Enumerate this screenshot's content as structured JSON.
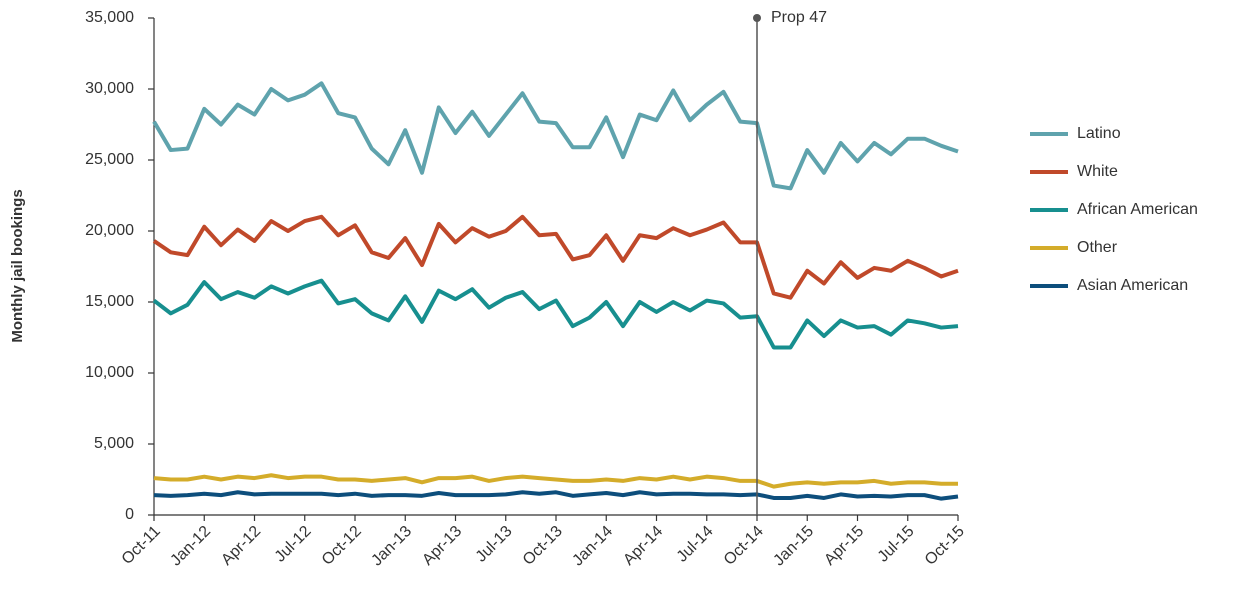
{
  "chart_data": {
    "type": "line",
    "y_label": "Monthly jail bookings",
    "categories": [
      "Oct-11",
      null,
      null,
      "Jan-12",
      null,
      null,
      "Apr-12",
      null,
      null,
      "Jul-12",
      null,
      null,
      "Oct-12",
      null,
      null,
      "Jan-13",
      null,
      null,
      "Apr-13",
      null,
      null,
      "Jul-13",
      null,
      null,
      "Oct-13",
      null,
      null,
      "Jan-14",
      null,
      null,
      "Apr-14",
      null,
      null,
      "Jul-14",
      null,
      null,
      "Oct-14",
      null,
      null,
      "Jan-15",
      null,
      null,
      "Apr-15",
      null,
      null,
      "Jul-15",
      null,
      null,
      "Oct-15"
    ],
    "series": [
      {
        "name": "Latino",
        "color": "#5fa3ad",
        "values": [
          27700,
          25700,
          25800,
          28600,
          27500,
          28900,
          28200,
          30000,
          29200,
          29600,
          30400,
          28300,
          28000,
          25800,
          24700,
          27100,
          24100,
          28700,
          26900,
          28400,
          26700,
          28200,
          29700,
          27700,
          27600,
          25900,
          25900,
          28000,
          25200,
          28200,
          27800,
          29900,
          27800,
          28900,
          29800,
          27700,
          27600,
          23200,
          23000,
          25700,
          24100,
          26200,
          24900,
          26200,
          25400,
          26500,
          26500,
          26000,
          25600
        ]
      },
      {
        "name": "White",
        "color": "#c0492a",
        "values": [
          19300,
          18500,
          18300,
          20300,
          19000,
          20100,
          19300,
          20700,
          20000,
          20700,
          21000,
          19700,
          20400,
          18500,
          18100,
          19500,
          17600,
          20500,
          19200,
          20200,
          19600,
          20000,
          21000,
          19700,
          19800,
          18000,
          18300,
          19700,
          17900,
          19700,
          19500,
          20200,
          19700,
          20100,
          20600,
          19200,
          19200,
          15600,
          15300,
          17200,
          16300,
          17800,
          16700,
          17400,
          17200,
          17900,
          17400,
          16800,
          17200
        ]
      },
      {
        "name": "African American",
        "color": "#178f8f",
        "values": [
          15100,
          14200,
          14800,
          16400,
          15200,
          15700,
          15300,
          16100,
          15600,
          16100,
          16500,
          14900,
          15200,
          14200,
          13700,
          15400,
          13600,
          15800,
          15200,
          15900,
          14600,
          15300,
          15700,
          14500,
          15100,
          13300,
          13900,
          15000,
          13300,
          15000,
          14300,
          15000,
          14400,
          15100,
          14900,
          13900,
          14000,
          11800,
          11800,
          13700,
          12600,
          13700,
          13200,
          13300,
          12700,
          13700,
          13500,
          13200,
          13300
        ]
      },
      {
        "name": "Other",
        "color": "#d4ac2a",
        "values": [
          2600,
          2500,
          2500,
          2700,
          2500,
          2700,
          2600,
          2800,
          2600,
          2700,
          2700,
          2500,
          2500,
          2400,
          2500,
          2600,
          2300,
          2600,
          2600,
          2700,
          2400,
          2600,
          2700,
          2600,
          2500,
          2400,
          2400,
          2500,
          2400,
          2600,
          2500,
          2700,
          2500,
          2700,
          2600,
          2400,
          2400,
          2000,
          2200,
          2300,
          2200,
          2300,
          2300,
          2400,
          2200,
          2300,
          2300,
          2200,
          2200
        ]
      },
      {
        "name": "Asian American",
        "color": "#0d4e7c",
        "values": [
          1400,
          1350,
          1400,
          1500,
          1400,
          1600,
          1450,
          1500,
          1500,
          1500,
          1500,
          1400,
          1500,
          1350,
          1400,
          1400,
          1350,
          1550,
          1400,
          1400,
          1400,
          1450,
          1600,
          1500,
          1600,
          1350,
          1450,
          1550,
          1400,
          1600,
          1450,
          1500,
          1500,
          1450,
          1450,
          1400,
          1450,
          1200,
          1200,
          1350,
          1200,
          1450,
          1300,
          1350,
          1300,
          1400,
          1400,
          1150,
          1300
        ]
      }
    ],
    "ylim": [
      0,
      35000
    ],
    "yticks": [
      0,
      {
        "value": 5000,
        "label": "5,000"
      },
      {
        "value": 10000,
        "label": "10,000"
      },
      {
        "value": 15000,
        "label": "15,000"
      },
      {
        "value": 20000,
        "label": "20,000"
      },
      {
        "value": 25000,
        "label": "25,000"
      },
      {
        "value": 30000,
        "label": "30,000"
      },
      {
        "value": 35000,
        "label": "35,000"
      }
    ],
    "grid": false,
    "legend": "right",
    "annotation": {
      "text": "Prop 47",
      "x": "Oct-14",
      "color": "#555555"
    }
  }
}
